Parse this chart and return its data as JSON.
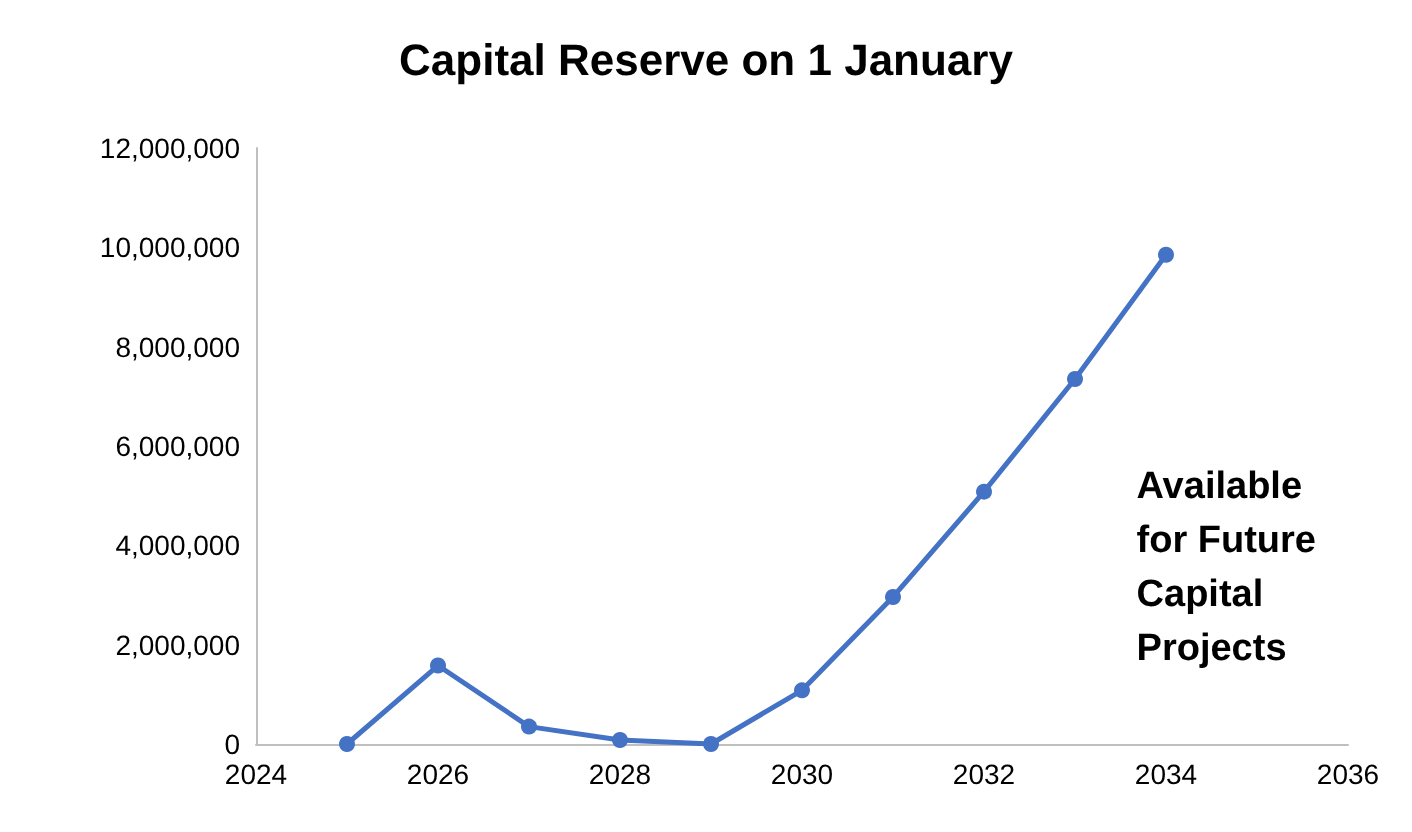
{
  "chart_data": {
    "type": "line",
    "title": "Capital Reserve on 1 January",
    "x": [
      2025,
      2026,
      2027,
      2028,
      2029,
      2030,
      2031,
      2032,
      2033,
      2034
    ],
    "series": [
      {
        "color": "#4472c4",
        "values": [
          0,
          1580000,
          350000,
          80000,
          0,
          1080000,
          2960000,
          5080000,
          7350000,
          9850000
        ]
      }
    ],
    "xlim": [
      2024,
      2036
    ],
    "xticks": [
      2024,
      2026,
      2028,
      2030,
      2032,
      2034,
      2036
    ],
    "ylim": [
      0,
      12000000
    ],
    "yticks": [
      {
        "value": 0,
        "label": "0"
      },
      {
        "value": 2000000,
        "label": "2,000,000"
      },
      {
        "value": 4000000,
        "label": "4,000,000"
      },
      {
        "value": 6000000,
        "label": "6,000,000"
      },
      {
        "value": 8000000,
        "label": "8,000,000"
      },
      {
        "value": 10000000,
        "label": "10,000,000"
      },
      {
        "value": 12000000,
        "label": "12,000,000"
      }
    ],
    "annotations": [
      "Available\nfor Future\nCapital\nProjects"
    ],
    "grid": false,
    "marker": "circle",
    "line_style": "solid"
  }
}
